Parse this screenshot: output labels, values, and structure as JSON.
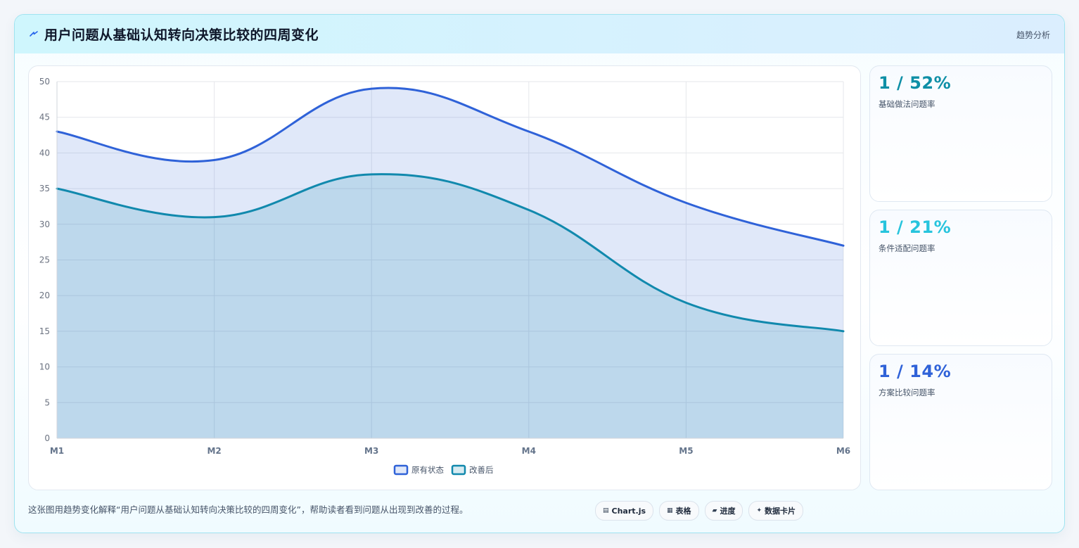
{
  "header": {
    "title": "用户问题从基础认知转向决策比较的四周变化",
    "tag": "趋势分析",
    "icon": "lightning-icon"
  },
  "colors": {
    "series1": "#2f62d8",
    "series2": "#1189ad",
    "stat1": "#0e8fa6",
    "stat2": "#27c4dd",
    "stat3": "#2f62d8"
  },
  "chart_data": {
    "type": "area",
    "x": [
      "M1",
      "M2",
      "M3",
      "M4",
      "M5",
      "M6"
    ],
    "ylim": [
      0,
      50
    ],
    "yticks": [
      0,
      5,
      10,
      15,
      20,
      25,
      30,
      35,
      40,
      45,
      50
    ],
    "grid": true,
    "legend": "bottom",
    "series": [
      {
        "name": "原有状态",
        "values": [
          43,
          39,
          49,
          43,
          33,
          27
        ]
      },
      {
        "name": "改善后",
        "values": [
          35,
          31,
          37,
          32,
          19,
          15
        ]
      }
    ]
  },
  "stats": [
    {
      "value": "1 / 52%",
      "label": "基础做法问题率"
    },
    {
      "value": "1 / 21%",
      "label": "条件适配问题率"
    },
    {
      "value": "1 / 14%",
      "label": "方案比较问题率"
    }
  ],
  "footer": {
    "description": "这张图用趋势变化解释“用户问题从基础认知转向决策比较的四周变化”，帮助读者看到问题从出现到改善的过程。",
    "chips": [
      {
        "icon": "chart-icon",
        "glyph": "▤",
        "label": "Chart.js"
      },
      {
        "icon": "table-icon",
        "glyph": "▦",
        "label": "表格"
      },
      {
        "icon": "progress-icon",
        "glyph": "▰",
        "label": "进度"
      },
      {
        "icon": "card-icon",
        "glyph": "✦",
        "label": "数据卡片"
      }
    ]
  }
}
